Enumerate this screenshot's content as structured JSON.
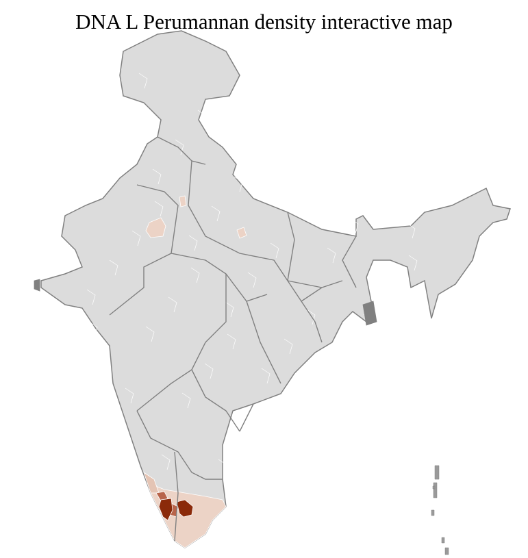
{
  "title": "DNA L Perumannan density interactive map",
  "colors": {
    "base_fill": "#dcdcdc",
    "district_border": "#ffffff",
    "state_border": "#808080",
    "low_density": "#ecd3c6",
    "medium_density": "#b8644a",
    "high_density": "#8b2a0a"
  }
}
